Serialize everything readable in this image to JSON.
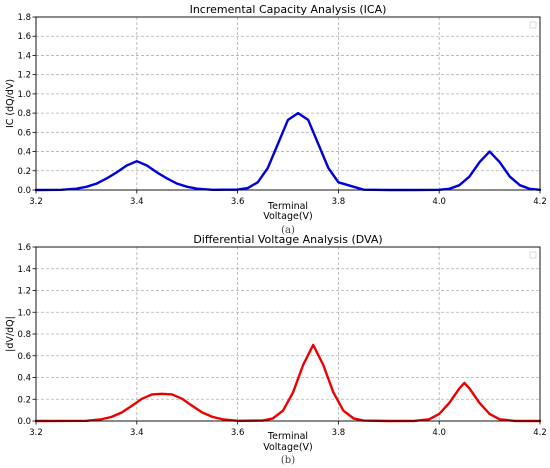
{
  "chart_data": [
    {
      "type": "line",
      "title": "Incremental Capacity Analysis (ICA)",
      "xlabel_line1": "Terminal",
      "xlabel_line2": "Voltage(V)",
      "ylabel": "IC (dQ/dV)",
      "caption": "(a)",
      "xlim": [
        3.2,
        4.2
      ],
      "ylim": [
        0,
        1.8
      ],
      "xticks": [
        "3.2",
        "3.4",
        "3.6",
        "3.8",
        "4.0",
        "4.2"
      ],
      "yticks": [
        "0.0",
        "0.2",
        "0.4",
        "0.6",
        "0.8",
        "1.0",
        "1.2",
        "1.4",
        "1.6",
        "1.8"
      ],
      "grid": true,
      "legend": "top-right, empty",
      "series": [
        {
          "color": "#0000dd",
          "x": [
            3.2,
            3.25,
            3.28,
            3.3,
            3.32,
            3.34,
            3.36,
            3.38,
            3.4,
            3.42,
            3.44,
            3.46,
            3.48,
            3.5,
            3.52,
            3.55,
            3.6,
            3.62,
            3.64,
            3.66,
            3.68,
            3.7,
            3.72,
            3.74,
            3.76,
            3.78,
            3.8,
            3.85,
            3.9,
            3.95,
            4.0,
            4.02,
            4.04,
            4.06,
            4.08,
            4.1,
            4.12,
            4.14,
            4.16,
            4.18,
            4.2
          ],
          "y": [
            0.0,
            0.002,
            0.014,
            0.033,
            0.066,
            0.12,
            0.183,
            0.255,
            0.3,
            0.255,
            0.183,
            0.12,
            0.066,
            0.033,
            0.014,
            0.002,
            0.004,
            0.02,
            0.08,
            0.23,
            0.48,
            0.73,
            0.8,
            0.73,
            0.48,
            0.23,
            0.08,
            0.003,
            0.0,
            0.0,
            0.002,
            0.012,
            0.05,
            0.14,
            0.29,
            0.4,
            0.29,
            0.14,
            0.05,
            0.012,
            0.002
          ]
        }
      ]
    },
    {
      "type": "line",
      "title": "Differential Voltage Analysis (DVA)",
      "xlabel_line1": "Terminal",
      "xlabel_line2": "Voltage(V)",
      "ylabel": "|dV/dQ|",
      "caption": "(b)",
      "xlim": [
        3.2,
        4.2
      ],
      "ylim": [
        0,
        1.6
      ],
      "xticks": [
        "3.2",
        "3.4",
        "3.6",
        "3.8",
        "4.0",
        "4.2"
      ],
      "yticks": [
        "0.0",
        "0.2",
        "0.4",
        "0.6",
        "0.8",
        "1.0",
        "1.2",
        "1.4",
        "1.6"
      ],
      "grid": true,
      "legend": "top-right, empty",
      "series": [
        {
          "color": "#ee0000",
          "x": [
            3.2,
            3.3,
            3.33,
            3.35,
            3.37,
            3.39,
            3.41,
            3.43,
            3.45,
            3.47,
            3.49,
            3.51,
            3.53,
            3.55,
            3.57,
            3.6,
            3.65,
            3.67,
            3.69,
            3.71,
            3.73,
            3.75,
            3.77,
            3.79,
            3.81,
            3.83,
            3.85,
            3.9,
            3.95,
            3.98,
            4.0,
            4.02,
            4.04,
            4.05,
            4.06,
            4.08,
            4.1,
            4.12,
            4.15,
            4.2
          ],
          "y": [
            0.0,
            0.002,
            0.016,
            0.038,
            0.078,
            0.139,
            0.204,
            0.244,
            0.25,
            0.244,
            0.204,
            0.139,
            0.078,
            0.038,
            0.016,
            0.002,
            0.004,
            0.024,
            0.095,
            0.263,
            0.515,
            0.7,
            0.515,
            0.263,
            0.095,
            0.024,
            0.004,
            0.0,
            0.001,
            0.016,
            0.065,
            0.166,
            0.3,
            0.35,
            0.3,
            0.166,
            0.065,
            0.016,
            0.001,
            0.0
          ]
        }
      ]
    }
  ]
}
